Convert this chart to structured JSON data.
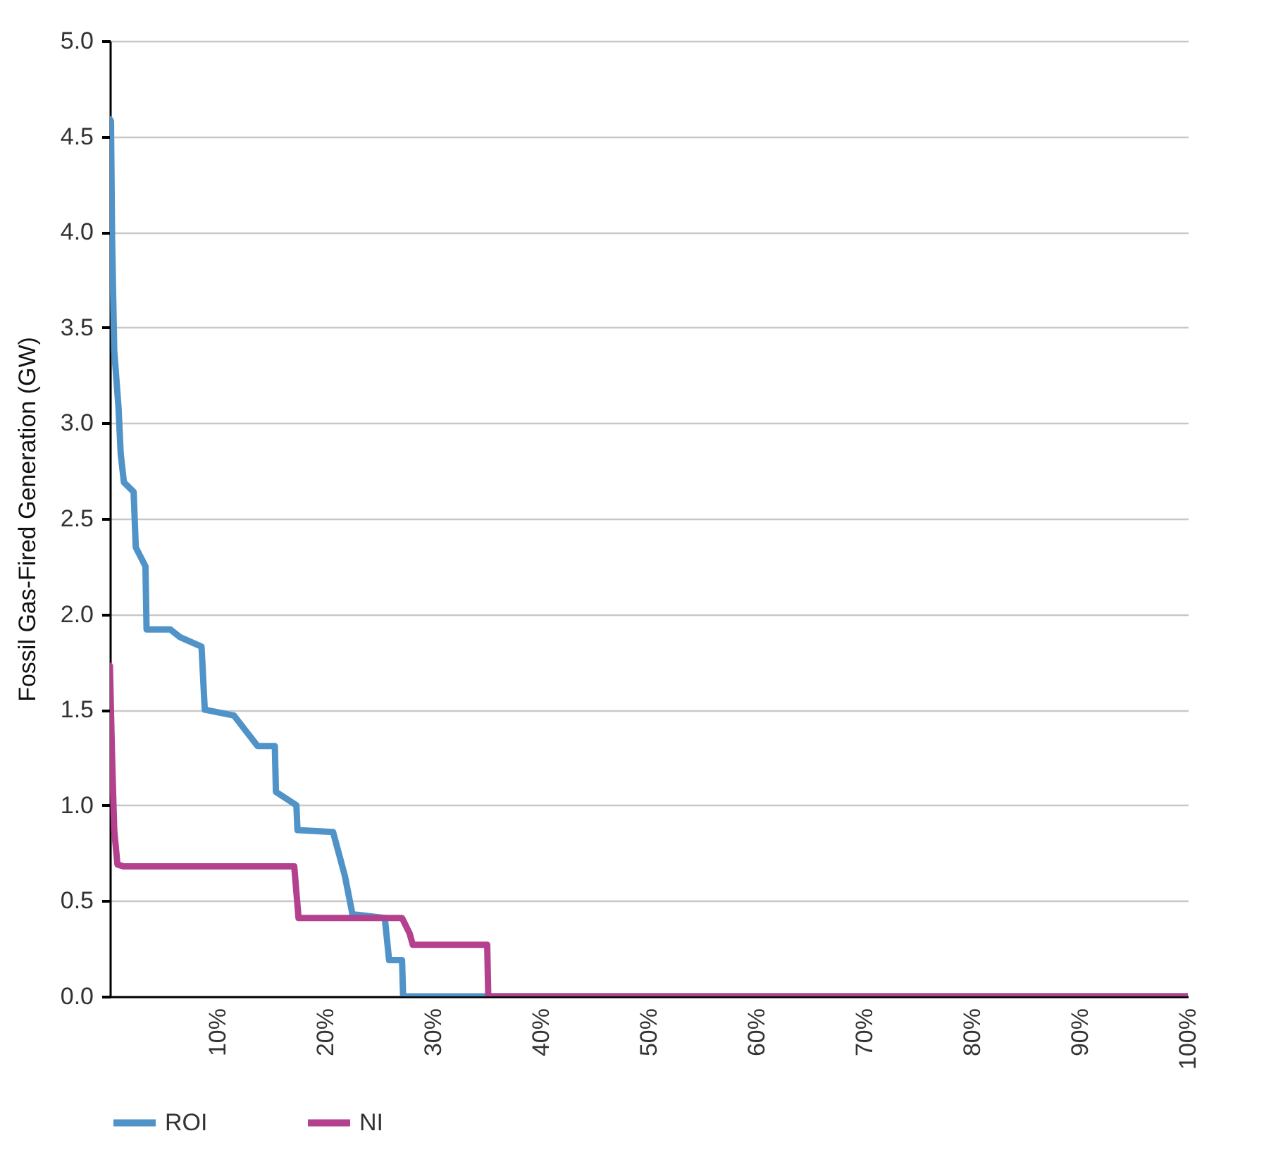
{
  "chart_data": {
    "type": "line",
    "ylabel": "Fossil Gas-Fired Generation (GW)",
    "xlim": [
      0,
      100
    ],
    "xticks": [
      {
        "value": 10,
        "label": "10%"
      },
      {
        "value": 20,
        "label": "20%"
      },
      {
        "value": 30,
        "label": "30%"
      },
      {
        "value": 40,
        "label": "40%"
      },
      {
        "value": 50,
        "label": "50%"
      },
      {
        "value": 60,
        "label": "60%"
      },
      {
        "value": 70,
        "label": "70%"
      },
      {
        "value": 80,
        "label": "80%"
      },
      {
        "value": 90,
        "label": "90%"
      },
      {
        "value": 100,
        "label": "100%"
      }
    ],
    "ylim": [
      0,
      5
    ],
    "yticks": [
      {
        "value": 0,
        "label": "0.0"
      },
      0.5,
      {
        "value": 1,
        "label": "1.0"
      },
      1.5,
      {
        "value": 2,
        "label": "2.0"
      },
      2.5,
      {
        "value": 3,
        "label": "3.0"
      },
      3.5,
      {
        "value": 4,
        "label": "4.0"
      },
      4.5,
      {
        "value": 5,
        "label": "5.0"
      }
    ],
    "grid": "y",
    "legend": "bottom",
    "line_style": "solid",
    "series": [
      {
        "name": "ROI",
        "color": "#4f93c8",
        "x": [
          0,
          0.1,
          0.2,
          0.3,
          0.4,
          0.8,
          1.0,
          1.3,
          2.2,
          2.4,
          3.3,
          3.4,
          5.6,
          6.5,
          8.5,
          8.8,
          11.5,
          13.7,
          15.3,
          15.4,
          17.3,
          17.4,
          20.7,
          21.8,
          22.5,
          25.5,
          25.9,
          27.1,
          27.2,
          100
        ],
        "values": [
          4.59,
          4.58,
          3.97,
          3.67,
          3.38,
          3.08,
          2.84,
          2.69,
          2.64,
          2.35,
          2.25,
          1.92,
          1.92,
          1.88,
          1.83,
          1.5,
          1.47,
          1.31,
          1.31,
          1.07,
          1.0,
          0.87,
          0.86,
          0.63,
          0.43,
          0.41,
          0.19,
          0.19,
          0,
          0
        ]
      },
      {
        "name": "NI",
        "color": "#b4418e",
        "x": [
          0,
          0.2,
          0.4,
          0.7,
          1.3,
          17.1,
          17.5,
          27.1,
          27.8,
          28.1,
          35.0,
          35.1,
          100
        ],
        "values": [
          1.73,
          1.25,
          0.87,
          0.69,
          0.68,
          0.68,
          0.41,
          0.41,
          0.33,
          0.27,
          0.27,
          0,
          0
        ]
      }
    ]
  }
}
